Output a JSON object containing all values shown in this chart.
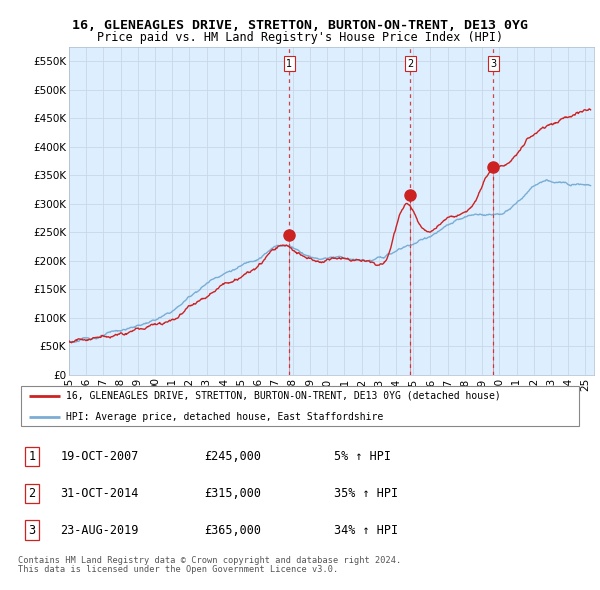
{
  "title": "16, GLENEAGLES DRIVE, STRETTON, BURTON-ON-TRENT, DE13 0YG",
  "subtitle": "Price paid vs. HM Land Registry's House Price Index (HPI)",
  "ylabel_ticks": [
    "£0",
    "£50K",
    "£100K",
    "£150K",
    "£200K",
    "£250K",
    "£300K",
    "£350K",
    "£400K",
    "£450K",
    "£500K",
    "£550K"
  ],
  "ytick_values": [
    0,
    50000,
    100000,
    150000,
    200000,
    250000,
    300000,
    350000,
    400000,
    450000,
    500000,
    550000
  ],
  "ylim": [
    0,
    575000
  ],
  "hpi_color": "#7aadd4",
  "price_color": "#cc2222",
  "vline_color": "#cc3333",
  "chart_bg_color": "#ddeeff",
  "sale1_date": 2007.8,
  "sale1_price": 245000,
  "sale1_label": "1",
  "sale2_date": 2014.83,
  "sale2_price": 315000,
  "sale2_label": "2",
  "sale3_date": 2019.65,
  "sale3_price": 365000,
  "sale3_label": "3",
  "legend_line1": "16, GLENEAGLES DRIVE, STRETTON, BURTON-ON-TRENT, DE13 0YG (detached house)",
  "legend_line2": "HPI: Average price, detached house, East Staffordshire",
  "table_rows": [
    {
      "num": "1",
      "date": "19-OCT-2007",
      "price": "£245,000",
      "change": "5% ↑ HPI"
    },
    {
      "num": "2",
      "date": "31-OCT-2014",
      "price": "£315,000",
      "change": "35% ↑ HPI"
    },
    {
      "num": "3",
      "date": "23-AUG-2019",
      "price": "£365,000",
      "change": "34% ↑ HPI"
    }
  ],
  "footnote1": "Contains HM Land Registry data © Crown copyright and database right 2024.",
  "footnote2": "This data is licensed under the Open Government Licence v3.0.",
  "bg_color": "#ffffff",
  "grid_color": "#c8d8e8",
  "xmin": 1995,
  "xmax": 2025.5
}
